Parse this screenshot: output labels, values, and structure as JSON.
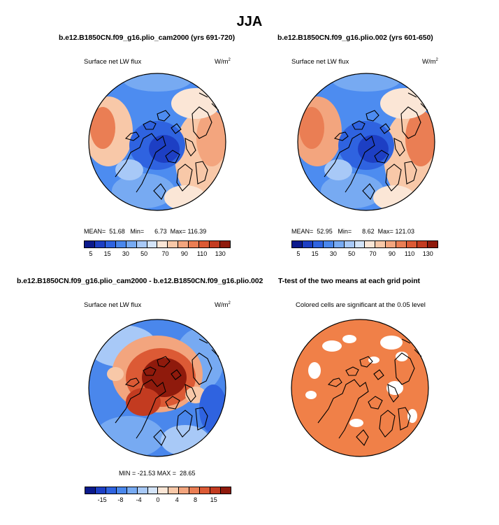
{
  "title": "JJA",
  "panels": [
    {
      "id": "p1",
      "title": "b.e12.B1850CN.f09_g16.plio_cam2000 (yrs 691-720)",
      "left_label": "Surface net LW flux",
      "units_base": "W/m",
      "units_exp": "2",
      "stats": {
        "mean_label": "MEAN=",
        "mean": "51.68",
        "min_label": "Min=",
        "min": "6.73",
        "max_label": "Max=",
        "max": "116.39"
      }
    },
    {
      "id": "p2",
      "title": "b.e12.B1850CN.f09_g16.plio.002 (yrs 601-650)",
      "left_label": "Surface net LW flux",
      "units_base": "W/m",
      "units_exp": "2",
      "stats": {
        "mean_label": "MEAN=",
        "mean": "52.95",
        "min_label": "Min=",
        "min": "8.62",
        "max_label": "Max=",
        "max": "121.03"
      }
    },
    {
      "id": "p3",
      "title": "b.e12.B1850CN.f09_g16.plio_cam2000 - b.e12.B1850CN.f09_g16.plio.002",
      "left_label": "Surface net LW flux",
      "units_base": "W/m",
      "units_exp": "2",
      "stats_text": "MIN = -21.53 MAX =  28.65"
    },
    {
      "id": "p4",
      "title": "T-test of the two means at each grid point",
      "subtitle": "Colored cells are significant at the 0.05 level"
    }
  ],
  "colorbar_abs": {
    "colors": [
      "#0b1a8c",
      "#1d3fc4",
      "#2f63e0",
      "#4a87ec",
      "#77aaf2",
      "#a8c9f7",
      "#d4e4f8",
      "#fbe6d6",
      "#f8c8a8",
      "#f3a57e",
      "#ea7e54",
      "#dc5a35",
      "#c33b20",
      "#8f1a0c"
    ],
    "tick_labels": [
      "5",
      "15",
      "30",
      "50",
      "70",
      "90",
      "110",
      "130"
    ]
  },
  "colorbar_diff": {
    "colors": [
      "#0b1a8c",
      "#1d3fc4",
      "#2f63e0",
      "#4a87ec",
      "#77aaf2",
      "#a8c9f7",
      "#d4e4f8",
      "#fbe6d6",
      "#f8c8a8",
      "#f3a57e",
      "#ea7e54",
      "#dc5a35",
      "#c33b20",
      "#8f1a0c"
    ],
    "tick_labels": [
      "-15",
      "-8",
      "-4",
      "0",
      "4",
      "8",
      "15"
    ]
  },
  "colors": {
    "ttest_fill": "#f08048",
    "blue_base": "#4d8cf0",
    "red_base": "#e8774f"
  }
}
